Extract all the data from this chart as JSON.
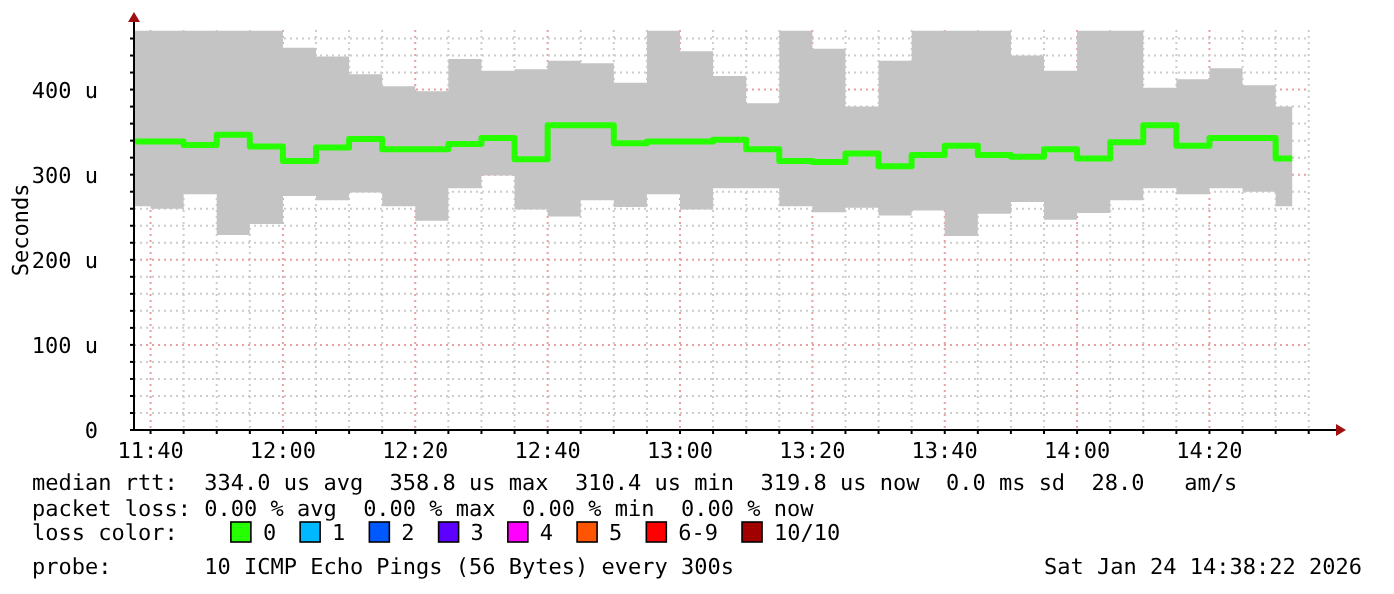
{
  "chart_data": {
    "type": "step",
    "ylabel": "Seconds",
    "legend_title": "loss color:",
    "legend": "bottom",
    "grid": true,
    "line_style": "solid",
    "marker": "none",
    "xlim": [
      11.625,
      14.652
    ],
    "xticks": [
      {
        "value": 11.6667,
        "label": "11:40"
      },
      {
        "value": 11.75,
        "label": null
      },
      {
        "value": 11.8333,
        "label": null
      },
      {
        "value": 11.9167,
        "label": null
      },
      {
        "value": 12,
        "label": "12:00"
      },
      {
        "value": 12.0833,
        "label": null
      },
      {
        "value": 12.1667,
        "label": null
      },
      {
        "value": 12.25,
        "label": null
      },
      {
        "value": 12.3333,
        "label": "12:20"
      },
      {
        "value": 12.4167,
        "label": null
      },
      {
        "value": 12.5,
        "label": null
      },
      {
        "value": 12.5833,
        "label": null
      },
      {
        "value": 12.6667,
        "label": "12:40"
      },
      {
        "value": 12.75,
        "label": null
      },
      {
        "value": 12.8333,
        "label": null
      },
      {
        "value": 12.9167,
        "label": null
      },
      {
        "value": 13,
        "label": "13:00"
      },
      {
        "value": 13.0833,
        "label": null
      },
      {
        "value": 13.1667,
        "label": null
      },
      {
        "value": 13.25,
        "label": null
      },
      {
        "value": 13.3333,
        "label": "13:20"
      },
      {
        "value": 13.4167,
        "label": null
      },
      {
        "value": 13.5,
        "label": null
      },
      {
        "value": 13.5833,
        "label": null
      },
      {
        "value": 13.6667,
        "label": "13:40"
      },
      {
        "value": 13.75,
        "label": null
      },
      {
        "value": 13.8333,
        "label": null
      },
      {
        "value": 13.9167,
        "label": null
      },
      {
        "value": 14,
        "label": "14:00"
      },
      {
        "value": 14.0833,
        "label": null
      },
      {
        "value": 14.1667,
        "label": null
      },
      {
        "value": 14.25,
        "label": null
      },
      {
        "value": 14.3333,
        "label": "14:20"
      },
      {
        "value": 14.4167,
        "label": null
      },
      {
        "value": 14.5,
        "label": null
      },
      {
        "value": 14.5833,
        "label": null
      }
    ],
    "ylim": [
      0,
      470
    ],
    "yticks": [
      0,
      {
        "value": 20,
        "label": null
      },
      {
        "value": 40,
        "label": null
      },
      {
        "value": 60,
        "label": null
      },
      {
        "value": 80,
        "label": null
      },
      {
        "value": 100,
        "label": "100 u"
      },
      {
        "value": 120,
        "label": null
      },
      {
        "value": 140,
        "label": null
      },
      {
        "value": 160,
        "label": null
      },
      {
        "value": 180,
        "label": null
      },
      {
        "value": 200,
        "label": "200 u"
      },
      {
        "value": 220,
        "label": null
      },
      {
        "value": 240,
        "label": null
      },
      {
        "value": 260,
        "label": null
      },
      {
        "value": 280,
        "label": null
      },
      {
        "value": 300,
        "label": "300 u"
      },
      {
        "value": 320,
        "label": null
      },
      {
        "value": 340,
        "label": null
      },
      {
        "value": 360,
        "label": null
      },
      {
        "value": 380,
        "label": null
      },
      {
        "value": 400,
        "label": "400 u"
      },
      {
        "value": 420,
        "label": null
      },
      {
        "value": 440,
        "label": null
      },
      {
        "value": 460,
        "label": null
      }
    ],
    "x": [
      11.625,
      11.7083,
      11.7917,
      11.875,
      11.9583,
      12.0417,
      12.125,
      12.2083,
      12.2917,
      12.375,
      12.4583,
      12.5417,
      12.625,
      12.7083,
      12.7917,
      12.875,
      12.9583,
      13.0417,
      13.125,
      13.2083,
      13.2917,
      13.375,
      13.4583,
      13.5417,
      13.625,
      13.7083,
      13.7917,
      13.875,
      13.9583,
      14.0417,
      14.125,
      14.2083,
      14.2917,
      14.375,
      14.4583,
      14.5417
    ],
    "series": [
      {
        "name": "0",
        "color": "#26ff00",
        "values": [
          339,
          339,
          335,
          347,
          333,
          316,
          332,
          342,
          330,
          330,
          336,
          343,
          318,
          358,
          358,
          337,
          339,
          339,
          341,
          330,
          316,
          315,
          325,
          310,
          323,
          334,
          323,
          321,
          330,
          319,
          338,
          358,
          334,
          343,
          343,
          319
        ],
        "lower": [
          263,
          260,
          277,
          229,
          242,
          275,
          270,
          279,
          263,
          246,
          284,
          299,
          259,
          251,
          270,
          262,
          277,
          259,
          284,
          284,
          263,
          256,
          261,
          252,
          258,
          228,
          254,
          268,
          247,
          255,
          270,
          284,
          277,
          284,
          280,
          263
        ],
        "upper": [
          469,
          469,
          469,
          469,
          469,
          449,
          439,
          418,
          404,
          398,
          436,
          422,
          424,
          434,
          431,
          408,
          469,
          445,
          416,
          384,
          469,
          448,
          380,
          434,
          469,
          469,
          469,
          440,
          422,
          469,
          469,
          402,
          412,
          425,
          405,
          380
        ]
      },
      {
        "name": "1",
        "color": "#00b8ff",
        "values": [
          null,
          null,
          null,
          null,
          null,
          null,
          null,
          null,
          null,
          null,
          null,
          null,
          null,
          null,
          null,
          null,
          null,
          null,
          null,
          null,
          null,
          null,
          null,
          null,
          null,
          null,
          null,
          null,
          null,
          null,
          null,
          null,
          null,
          null,
          null,
          null
        ]
      },
      {
        "name": "2",
        "color": "#0059ff",
        "values": [
          null,
          null,
          null,
          null,
          null,
          null,
          null,
          null,
          null,
          null,
          null,
          null,
          null,
          null,
          null,
          null,
          null,
          null,
          null,
          null,
          null,
          null,
          null,
          null,
          null,
          null,
          null,
          null,
          null,
          null,
          null,
          null,
          null,
          null,
          null,
          null
        ]
      },
      {
        "name": "3",
        "color": "#5e00ff",
        "values": [
          null,
          null,
          null,
          null,
          null,
          null,
          null,
          null,
          null,
          null,
          null,
          null,
          null,
          null,
          null,
          null,
          null,
          null,
          null,
          null,
          null,
          null,
          null,
          null,
          null,
          null,
          null,
          null,
          null,
          null,
          null,
          null,
          null,
          null,
          null,
          null
        ]
      },
      {
        "name": "4",
        "color": "#ff00ff",
        "values": [
          null,
          null,
          null,
          null,
          null,
          null,
          null,
          null,
          null,
          null,
          null,
          null,
          null,
          null,
          null,
          null,
          null,
          null,
          null,
          null,
          null,
          null,
          null,
          null,
          null,
          null,
          null,
          null,
          null,
          null,
          null,
          null,
          null,
          null,
          null,
          null
        ]
      },
      {
        "name": "5",
        "color": "#ff5500",
        "values": [
          null,
          null,
          null,
          null,
          null,
          null,
          null,
          null,
          null,
          null,
          null,
          null,
          null,
          null,
          null,
          null,
          null,
          null,
          null,
          null,
          null,
          null,
          null,
          null,
          null,
          null,
          null,
          null,
          null,
          null,
          null,
          null,
          null,
          null,
          null,
          null
        ]
      },
      {
        "name": "6-9",
        "color": "#ff0000",
        "values": [
          null,
          null,
          null,
          null,
          null,
          null,
          null,
          null,
          null,
          null,
          null,
          null,
          null,
          null,
          null,
          null,
          null,
          null,
          null,
          null,
          null,
          null,
          null,
          null,
          null,
          null,
          null,
          null,
          null,
          null,
          null,
          null,
          null,
          null,
          null,
          null
        ]
      },
      {
        "name": "10/10",
        "color": "#a10000",
        "values": [
          null,
          null,
          null,
          null,
          null,
          null,
          null,
          null,
          null,
          null,
          null,
          null,
          null,
          null,
          null,
          null,
          null,
          null,
          null,
          null,
          null,
          null,
          null,
          null,
          null,
          null,
          null,
          null,
          null,
          null,
          null,
          null,
          null,
          null,
          null,
          null
        ]
      }
    ],
    "annotations": [
      "median rtt:  334.0 us avg  358.8 us max  310.4 us min  319.8 us now  0.0 ms sd  28.0   am/s",
      "packet loss: 0.00 % avg  0.00 % max  0.00 % min  0.00 % now",
      "probe:       10 ICMP Echo Pings (56 Bytes) every 300s",
      "Sat Jan 24 14:38:22 2026"
    ]
  }
}
